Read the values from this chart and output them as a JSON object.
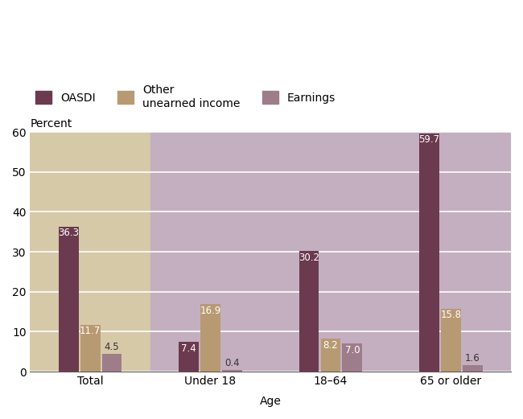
{
  "categories": [
    "Total",
    "Under 18",
    "18–64",
    "65 or older"
  ],
  "series": {
    "OASDI": [
      36.3,
      7.4,
      30.2,
      59.7
    ],
    "Other unearned income": [
      11.7,
      16.9,
      8.2,
      15.8
    ],
    "Earnings": [
      4.5,
      0.4,
      7.0,
      1.6
    ]
  },
  "colors": {
    "OASDI": "#6b3a4e",
    "Other unearned income": "#b89a72",
    "Earnings": "#9e7d8a"
  },
  "bg_colors": [
    "#d6c9a8",
    "#c4afc0",
    "#c4afc0",
    "#c4afc0"
  ],
  "bg_boundaries": [
    0,
    1,
    2,
    3,
    4
  ],
  "ylim": [
    0,
    60
  ],
  "yticks": [
    0,
    10,
    20,
    30,
    40,
    50,
    60
  ],
  "ylabel": "Percent",
  "xlabel": "Age",
  "bar_width": 0.18,
  "label_fontsize": 8.5,
  "axis_fontsize": 10,
  "legend_fontsize": 10
}
